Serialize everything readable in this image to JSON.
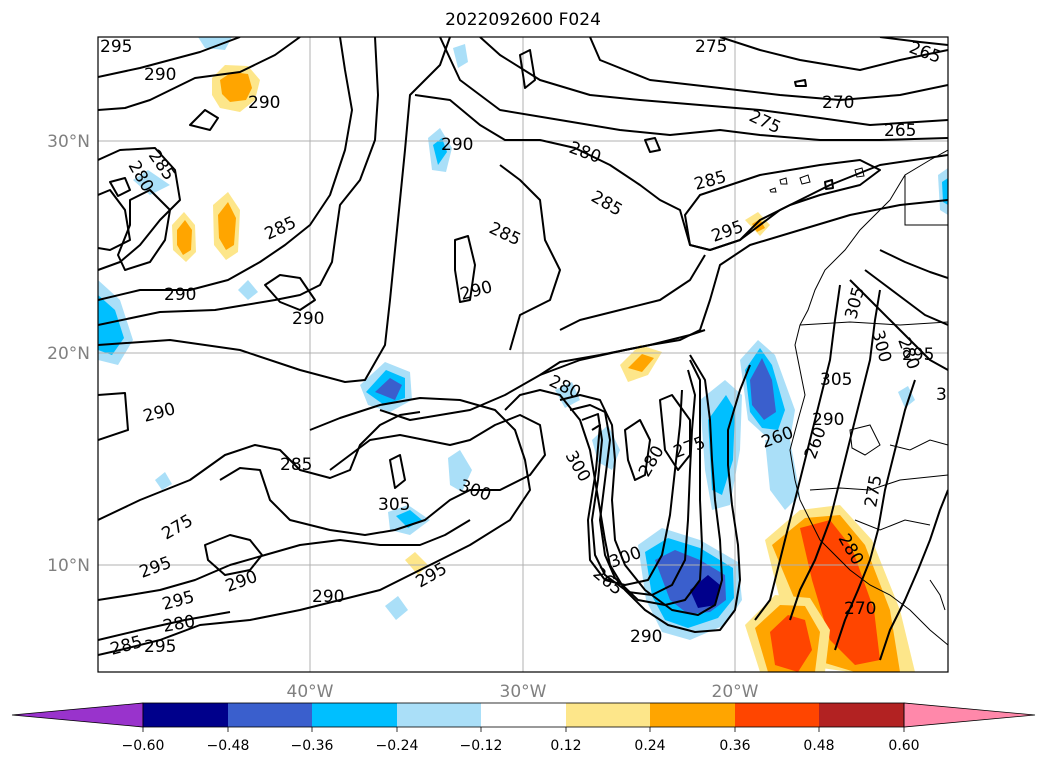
{
  "title": "2022092600 F024",
  "colors": {
    "violet": "#9933cc",
    "navy": "#00008b",
    "royal_blue": "#3a5fcd",
    "deep_sky_blue": "#00bfff",
    "light_blue": "#aadff8",
    "white": "#ffffff",
    "light_yellow": "#fde68a",
    "orange": "#ffa500",
    "orange_red": "#ff4500",
    "firebrick": "#b22222",
    "pink": "#ff88aa"
  },
  "lat_ticks": [
    "30°N",
    "20°N",
    "10°N"
  ],
  "lon_ticks": [
    "40°W",
    "30°W",
    "20°W"
  ],
  "colorbar": {
    "ticks": [
      "−0.60",
      "−0.48",
      "−0.36",
      "−0.24",
      "−0.12",
      "0.12",
      "0.24",
      "0.36",
      "0.48",
      "0.60"
    ],
    "extend": "both"
  },
  "contour_labels": [
    "295",
    "290",
    "290",
    "290",
    "285",
    "280",
    "285",
    "290",
    "290",
    "290",
    "285",
    "290",
    "280",
    "285",
    "285",
    "275",
    "265",
    "270",
    "275",
    "265",
    "280",
    "285",
    "295",
    "300",
    "280",
    "275",
    "260",
    "260",
    "305",
    "300",
    "305",
    "300",
    "280",
    "275",
    "295",
    "290",
    "295",
    "295",
    "290",
    "280",
    "285",
    "295",
    "290",
    "300",
    "265",
    "270",
    "280",
    "275",
    "290",
    "305",
    "300",
    "295"
  ],
  "chart_data": {
    "type": "heatmap",
    "title": "2022092600 F024",
    "projection": "cylindrical",
    "lon_range": [
      -50,
      -10
    ],
    "lat_range": [
      5,
      35
    ],
    "lon_ticks": [
      -40,
      -30,
      -20
    ],
    "lat_ticks": [
      30,
      20,
      10
    ],
    "grid": true,
    "colorbar_levels": [
      -0.6,
      -0.48,
      -0.36,
      -0.24,
      -0.12,
      0.12,
      0.24,
      0.36,
      0.48,
      0.6
    ],
    "contour_levels": [
      260,
      265,
      270,
      275,
      280,
      285,
      290,
      295,
      300,
      305
    ],
    "legend": "bottom"
  }
}
